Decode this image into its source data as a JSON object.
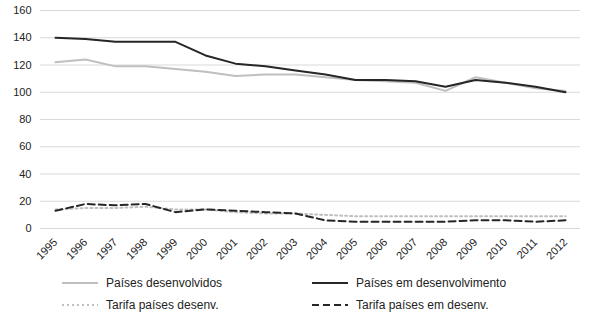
{
  "chart_data": {
    "type": "line",
    "categories": [
      "1995",
      "1996",
      "1997",
      "1998",
      "1999",
      "2000",
      "2001",
      "2002",
      "2003",
      "2004",
      "2005",
      "2006",
      "2007",
      "2008",
      "2009",
      "2010",
      "2011",
      "2012"
    ],
    "series": [
      {
        "name": "Países desenvolvidos",
        "color": "#bfbfbf",
        "line_style": "solid",
        "values": [
          122,
          124,
          119,
          119,
          117,
          115,
          112,
          113,
          113,
          111,
          109,
          108,
          107,
          101,
          111,
          107,
          103,
          101
        ]
      },
      {
        "name": "Países em desenvolvimento",
        "color": "#262626",
        "line_style": "solid",
        "values": [
          140,
          139,
          137,
          137,
          137,
          127,
          121,
          119,
          116,
          113,
          109,
          109,
          108,
          104,
          109,
          107,
          104,
          100
        ]
      },
      {
        "name": "Tarifa países desenv.",
        "color": "#bfbfbf",
        "line_style": "dotted",
        "values": [
          14,
          15,
          15,
          16,
          14,
          14,
          12,
          11,
          11,
          10,
          9,
          9,
          9,
          9,
          9,
          9,
          9,
          9
        ]
      },
      {
        "name": "Tarifa países em desenv.",
        "color": "#262626",
        "line_style": "dashed",
        "values": [
          13,
          18,
          17,
          18,
          12,
          14,
          13,
          12,
          11,
          6,
          5,
          5,
          5,
          5,
          6,
          6,
          5,
          6
        ]
      }
    ],
    "ylim": [
      0,
      160
    ],
    "yticks": [
      0,
      20,
      40,
      60,
      80,
      100,
      120,
      140,
      160
    ],
    "grid": true,
    "legend": "bottom"
  }
}
